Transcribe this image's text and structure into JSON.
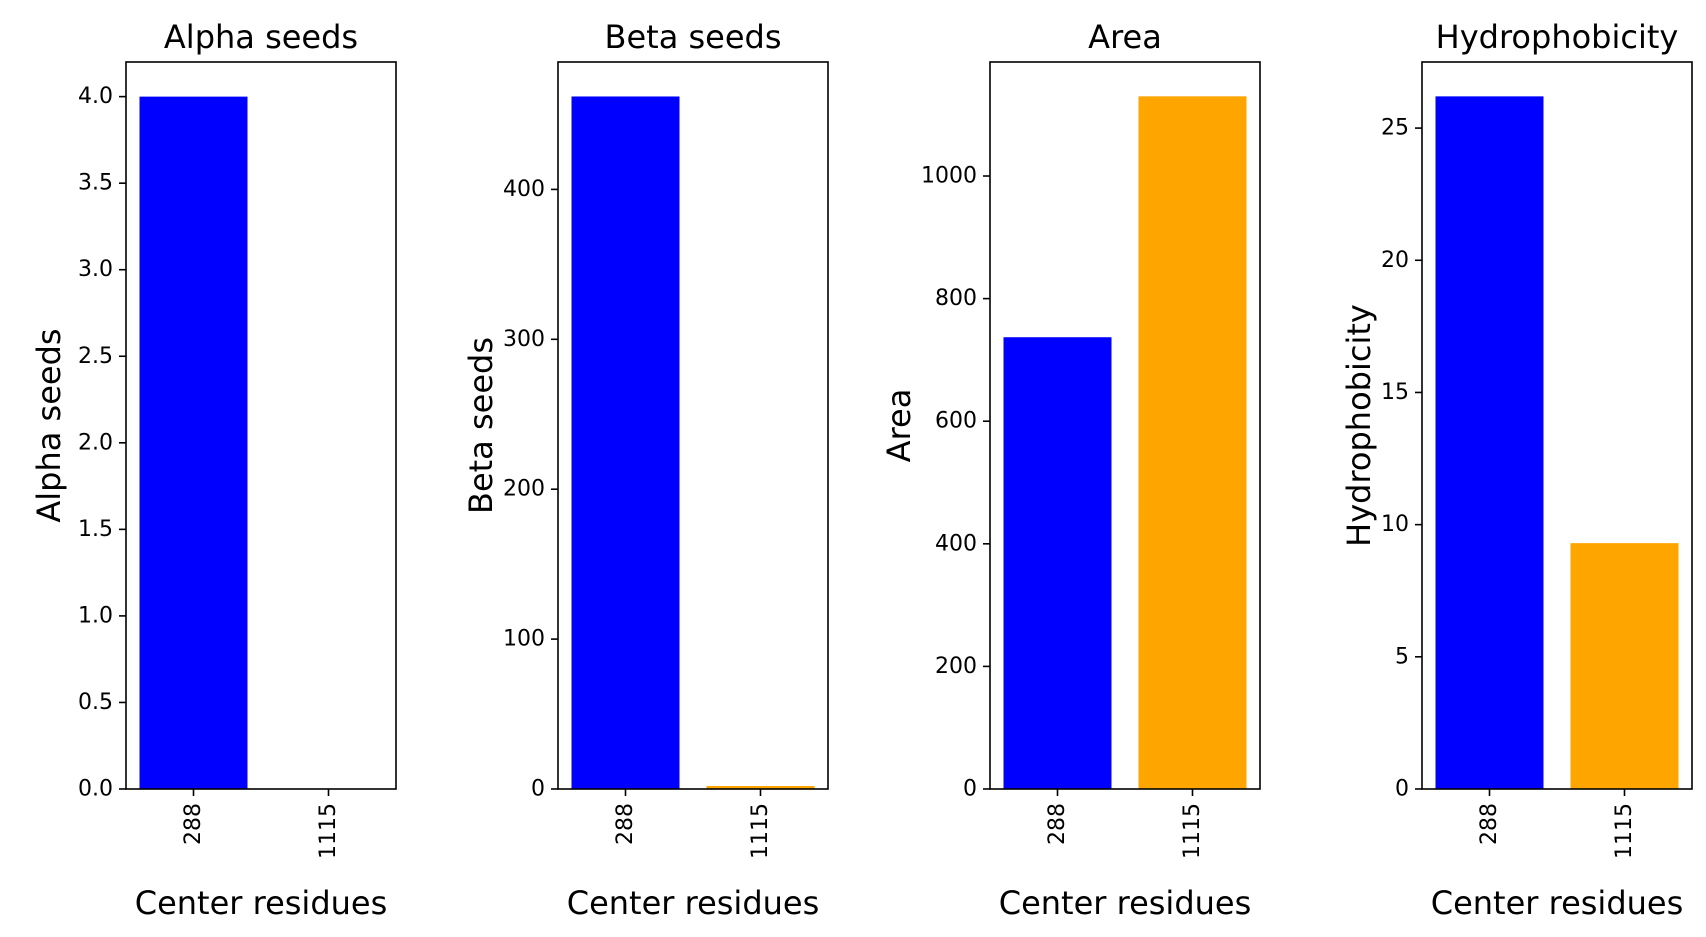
{
  "colors": {
    "first_bar": "#0000ff",
    "second_bar": "#ffa500"
  },
  "chart_data": [
    {
      "type": "bar",
      "title": "Alpha seeds",
      "xlabel": "Center residues",
      "ylabel": "Alpha seeds",
      "categories": [
        "288",
        "1115"
      ],
      "values": [
        4.0,
        0.0
      ],
      "ylim": [
        0,
        4.2
      ],
      "yticks": [
        0.0,
        0.5,
        1.0,
        1.5,
        2.0,
        2.5,
        3.0,
        3.5,
        4.0
      ],
      "ytick_labels": [
        "0.0",
        "0.5",
        "1.0",
        "1.5",
        "2.0",
        "2.5",
        "3.0",
        "3.5",
        "4.0"
      ],
      "grid": false
    },
    {
      "type": "bar",
      "title": "Beta seeds",
      "xlabel": "Center residues",
      "ylabel": "Beta seeds",
      "categories": [
        "288",
        "1115"
      ],
      "values": [
        462,
        2
      ],
      "ylim": [
        0,
        485
      ],
      "yticks": [
        0,
        100,
        200,
        300,
        400
      ],
      "ytick_labels": [
        "0",
        "100",
        "200",
        "300",
        "400"
      ],
      "grid": false
    },
    {
      "type": "bar",
      "title": "Area",
      "xlabel": "Center residues",
      "ylabel": "Area",
      "categories": [
        "288",
        "1115"
      ],
      "values": [
        737,
        1130
      ],
      "ylim": [
        0,
        1186
      ],
      "yticks": [
        0,
        200,
        400,
        600,
        800,
        1000
      ],
      "ytick_labels": [
        "0",
        "200",
        "400",
        "600",
        "800",
        "1000"
      ],
      "grid": false
    },
    {
      "type": "bar",
      "title": "Hydrophobicity",
      "xlabel": "Center residues",
      "ylabel": "Hydrophobicity",
      "categories": [
        "288",
        "1115"
      ],
      "values": [
        26.2,
        9.3
      ],
      "ylim": [
        0,
        27.5
      ],
      "yticks": [
        0,
        5,
        10,
        15,
        20,
        25
      ],
      "ytick_labels": [
        "0",
        "5",
        "10",
        "15",
        "20",
        "25"
      ],
      "grid": false
    }
  ]
}
